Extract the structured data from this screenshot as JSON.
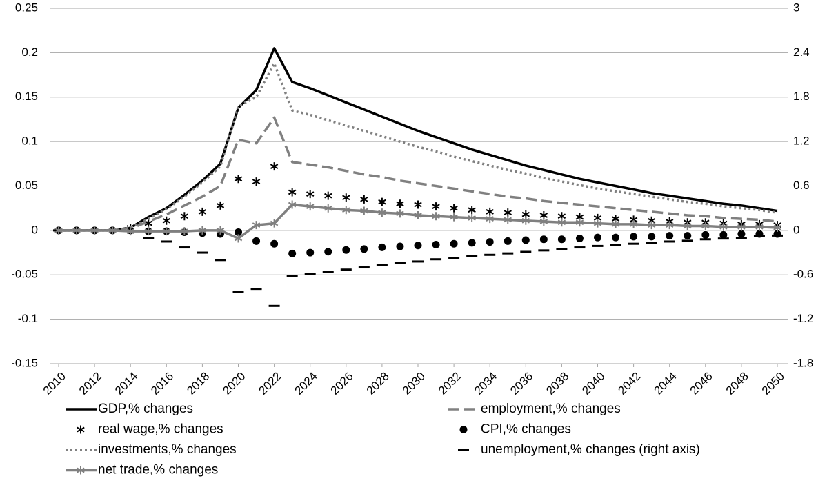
{
  "chart_data": {
    "type": "line",
    "x": [
      2010,
      2011,
      2012,
      2013,
      2014,
      2015,
      2016,
      2017,
      2018,
      2019,
      2020,
      2021,
      2022,
      2023,
      2024,
      2025,
      2026,
      2027,
      2028,
      2029,
      2030,
      2031,
      2032,
      2033,
      2034,
      2035,
      2036,
      2037,
      2038,
      2039,
      2040,
      2041,
      2042,
      2043,
      2044,
      2045,
      2046,
      2047,
      2048,
      2049,
      2050
    ],
    "xlim": [
      2010,
      2050
    ],
    "xticks": [
      2010,
      2012,
      2014,
      2016,
      2018,
      2020,
      2022,
      2024,
      2026,
      2028,
      2030,
      2032,
      2034,
      2036,
      2038,
      2040,
      2042,
      2044,
      2046,
      2048,
      2050
    ],
    "ylim": [
      -0.15,
      0.25
    ],
    "yticks": [
      -0.15,
      -0.1,
      -0.05,
      0,
      0.05,
      0.1,
      0.15,
      0.2,
      0.25
    ],
    "y2lim": [
      -1.8,
      3
    ],
    "y2ticks": [
      -1.8,
      -1.2,
      -0.6,
      0,
      0.6,
      1.2,
      1.8,
      2.4,
      3
    ],
    "grid": true,
    "series": [
      {
        "name": "GDP,% changes",
        "color": "#000000",
        "line_style": "solid",
        "marker": "none",
        "values": [
          0,
          0,
          0,
          0,
          0.003,
          0.015,
          0.025,
          0.04,
          0.056,
          0.075,
          0.138,
          0.158,
          0.205,
          0.167,
          0.16,
          0.152,
          0.144,
          0.136,
          0.128,
          0.12,
          0.112,
          0.105,
          0.098,
          0.091,
          0.085,
          0.079,
          0.073,
          0.068,
          0.063,
          0.058,
          0.054,
          0.05,
          0.046,
          0.042,
          0.039,
          0.036,
          0.033,
          0.03,
          0.028,
          0.025,
          0.022
        ]
      },
      {
        "name": "employment,% changes",
        "color": "#808080",
        "line_style": "dashed",
        "marker": "none",
        "values": [
          0,
          0,
          0,
          0,
          0.002,
          0.01,
          0.018,
          0.028,
          0.038,
          0.05,
          0.102,
          0.098,
          0.127,
          0.077,
          0.074,
          0.071,
          0.067,
          0.063,
          0.06,
          0.056,
          0.053,
          0.05,
          0.047,
          0.044,
          0.041,
          0.038,
          0.036,
          0.033,
          0.031,
          0.029,
          0.027,
          0.025,
          0.023,
          0.021,
          0.019,
          0.017,
          0.016,
          0.014,
          0.013,
          0.012,
          0.01
        ]
      },
      {
        "name": "real wage,% changes",
        "color": "#000000",
        "line_style": "none",
        "marker": "asterisk",
        "values": [
          0,
          0,
          0,
          0,
          0.003,
          0.008,
          0.011,
          0.016,
          0.021,
          0.028,
          0.058,
          0.055,
          0.072,
          0.043,
          0.041,
          0.039,
          0.037,
          0.035,
          0.032,
          0.03,
          0.029,
          0.027,
          0.025,
          0.023,
          0.021,
          0.02,
          0.018,
          0.017,
          0.016,
          0.015,
          0.014,
          0.013,
          0.012,
          0.011,
          0.01,
          0.009,
          0.009,
          0.008,
          0.007,
          0.007,
          0.006
        ]
      },
      {
        "name": "CPI,% changes",
        "color": "#000000",
        "line_style": "none",
        "marker": "circle",
        "values": [
          0,
          0,
          0,
          0,
          0,
          -0.001,
          -0.001,
          -0.002,
          -0.003,
          -0.004,
          -0.002,
          -0.012,
          -0.015,
          -0.026,
          -0.025,
          -0.024,
          -0.022,
          -0.021,
          -0.019,
          -0.018,
          -0.017,
          -0.016,
          -0.015,
          -0.014,
          -0.013,
          -0.012,
          -0.011,
          -0.01,
          -0.01,
          -0.009,
          -0.008,
          -0.008,
          -0.007,
          -0.007,
          -0.006,
          -0.006,
          -0.005,
          -0.005,
          -0.004,
          -0.004,
          -0.004
        ]
      },
      {
        "name": "investments,% changes",
        "color": "#808080",
        "line_style": "dotted",
        "marker": "none",
        "values": [
          0,
          0,
          0,
          0,
          0.003,
          0.013,
          0.024,
          0.038,
          0.054,
          0.072,
          0.14,
          0.15,
          0.188,
          0.135,
          0.13,
          0.124,
          0.118,
          0.112,
          0.106,
          0.1,
          0.094,
          0.089,
          0.083,
          0.078,
          0.073,
          0.068,
          0.064,
          0.059,
          0.055,
          0.051,
          0.047,
          0.044,
          0.041,
          0.038,
          0.035,
          0.032,
          0.03,
          0.027,
          0.025,
          0.023,
          0.02
        ]
      },
      {
        "name": "unemployment,% changes (right axis)",
        "color": "#000000",
        "line_style": "none",
        "marker": "dash",
        "axis": "y2",
        "values": [
          0,
          0,
          0,
          0,
          -0.01,
          -0.1,
          -0.15,
          -0.23,
          -0.3,
          -0.4,
          -0.83,
          -0.79,
          -1.02,
          -0.62,
          -0.59,
          -0.56,
          -0.53,
          -0.5,
          -0.47,
          -0.44,
          -0.42,
          -0.39,
          -0.37,
          -0.35,
          -0.33,
          -0.31,
          -0.29,
          -0.27,
          -0.25,
          -0.23,
          -0.21,
          -0.2,
          -0.18,
          -0.17,
          -0.15,
          -0.14,
          -0.12,
          -0.11,
          -0.1,
          -0.08,
          -0.07
        ]
      },
      {
        "name": "net trade,% changes",
        "color": "#808080",
        "line_style": "solid",
        "marker": "asterisk",
        "values": [
          0,
          0,
          0,
          0,
          -0.001,
          -0.001,
          -0.001,
          -0.001,
          0,
          0,
          -0.009,
          0.006,
          0.008,
          0.029,
          0.027,
          0.025,
          0.023,
          0.022,
          0.02,
          0.019,
          0.017,
          0.016,
          0.015,
          0.014,
          0.013,
          0.012,
          0.011,
          0.01,
          0.009,
          0.009,
          0.008,
          0.007,
          0.007,
          0.006,
          0.006,
          0.005,
          0.005,
          0.004,
          0.004,
          0.004,
          0.003
        ]
      }
    ]
  }
}
